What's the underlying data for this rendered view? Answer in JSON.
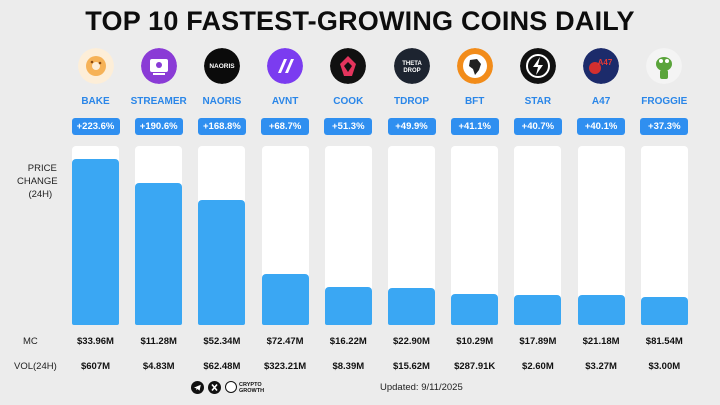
{
  "title": "TOP 10 FASTEST-GROWING COINS DAILY",
  "axis_label_lines": [
    "PRICE",
    "CHANGE",
    "(24H)"
  ],
  "row_labels": {
    "mc": "MC",
    "vol": "VOL(24H)"
  },
  "footer": {
    "updated": "Updated: 9/11/2025",
    "brand_lines": [
      "CRYPTO",
      "GROWTH"
    ],
    "social_icons": [
      "telegram-icon",
      "x-icon",
      "crypto-growth-logo-icon"
    ]
  },
  "colors": {
    "bar": "#3aa7f3",
    "pill": "#2f8ff0",
    "symbol": "#2a86e8",
    "track": "#ffffff",
    "background": "#ececec"
  },
  "coins": [
    {
      "symbol": "BAKE",
      "change_label": "+223.6%",
      "mc": "$33.96M",
      "vol": "$607M",
      "icon": "bake-logo-icon",
      "logo_color": "#f6b257"
    },
    {
      "symbol": "STREAMER",
      "change_label": "+190.6%",
      "mc": "$11.28M",
      "vol": "$4.83M",
      "icon": "streamer-logo-icon",
      "logo_color": "#8a3bd6"
    },
    {
      "symbol": "NAORIS",
      "change_label": "+168.8%",
      "mc": "$52.34M",
      "vol": "$62.48M",
      "icon": "naoris-logo-icon",
      "logo_color": "#0b0b0b",
      "logo_text": "NAORIS"
    },
    {
      "symbol": "AVNT",
      "change_label": "+68.7%",
      "mc": "$72.47M",
      "vol": "$323.21M",
      "icon": "avnt-logo-icon",
      "logo_color": "#7b3cf0"
    },
    {
      "symbol": "COOK",
      "change_label": "+51.3%",
      "mc": "$16.22M",
      "vol": "$8.39M",
      "icon": "cook-logo-icon",
      "logo_color": "#111111"
    },
    {
      "symbol": "TDROP",
      "change_label": "+49.9%",
      "mc": "$22.90M",
      "vol": "$15.62M",
      "icon": "tdrop-logo-icon",
      "logo_color": "#1d2430",
      "logo_text": "THETA DROP"
    },
    {
      "symbol": "BFT",
      "change_label": "+41.1%",
      "mc": "$10.29M",
      "vol": "$287.91K",
      "icon": "bft-logo-icon",
      "logo_color": "#f28c1a"
    },
    {
      "symbol": "STAR",
      "change_label": "+40.7%",
      "mc": "$17.89M",
      "vol": "$2.60M",
      "icon": "star-logo-icon",
      "logo_color": "#111111"
    },
    {
      "symbol": "A47",
      "change_label": "+40.1%",
      "mc": "$21.18M",
      "vol": "$3.27M",
      "icon": "a47-logo-icon",
      "logo_color": "#1c2b6b",
      "logo_text": "A47"
    },
    {
      "symbol": "FROGGIE",
      "change_label": "+37.3%",
      "mc": "$81.54M",
      "vol": "$3.00M",
      "icon": "froggie-logo-icon",
      "logo_color": "#f4f4f4"
    }
  ],
  "chart_data": {
    "type": "bar",
    "title": "TOP 10 FASTEST-GROWING COINS DAILY",
    "ylabel": "PRICE CHANGE (24H)",
    "xlabel": "",
    "categories": [
      "BAKE",
      "STREAMER",
      "NAORIS",
      "AVNT",
      "COOK",
      "TDROP",
      "BFT",
      "STAR",
      "A47",
      "FROGGIE"
    ],
    "values": [
      223.6,
      190.6,
      168.8,
      68.7,
      51.3,
      49.9,
      41.1,
      40.7,
      40.1,
      37.3
    ],
    "units": "%",
    "grid": false,
    "legend": "none"
  }
}
